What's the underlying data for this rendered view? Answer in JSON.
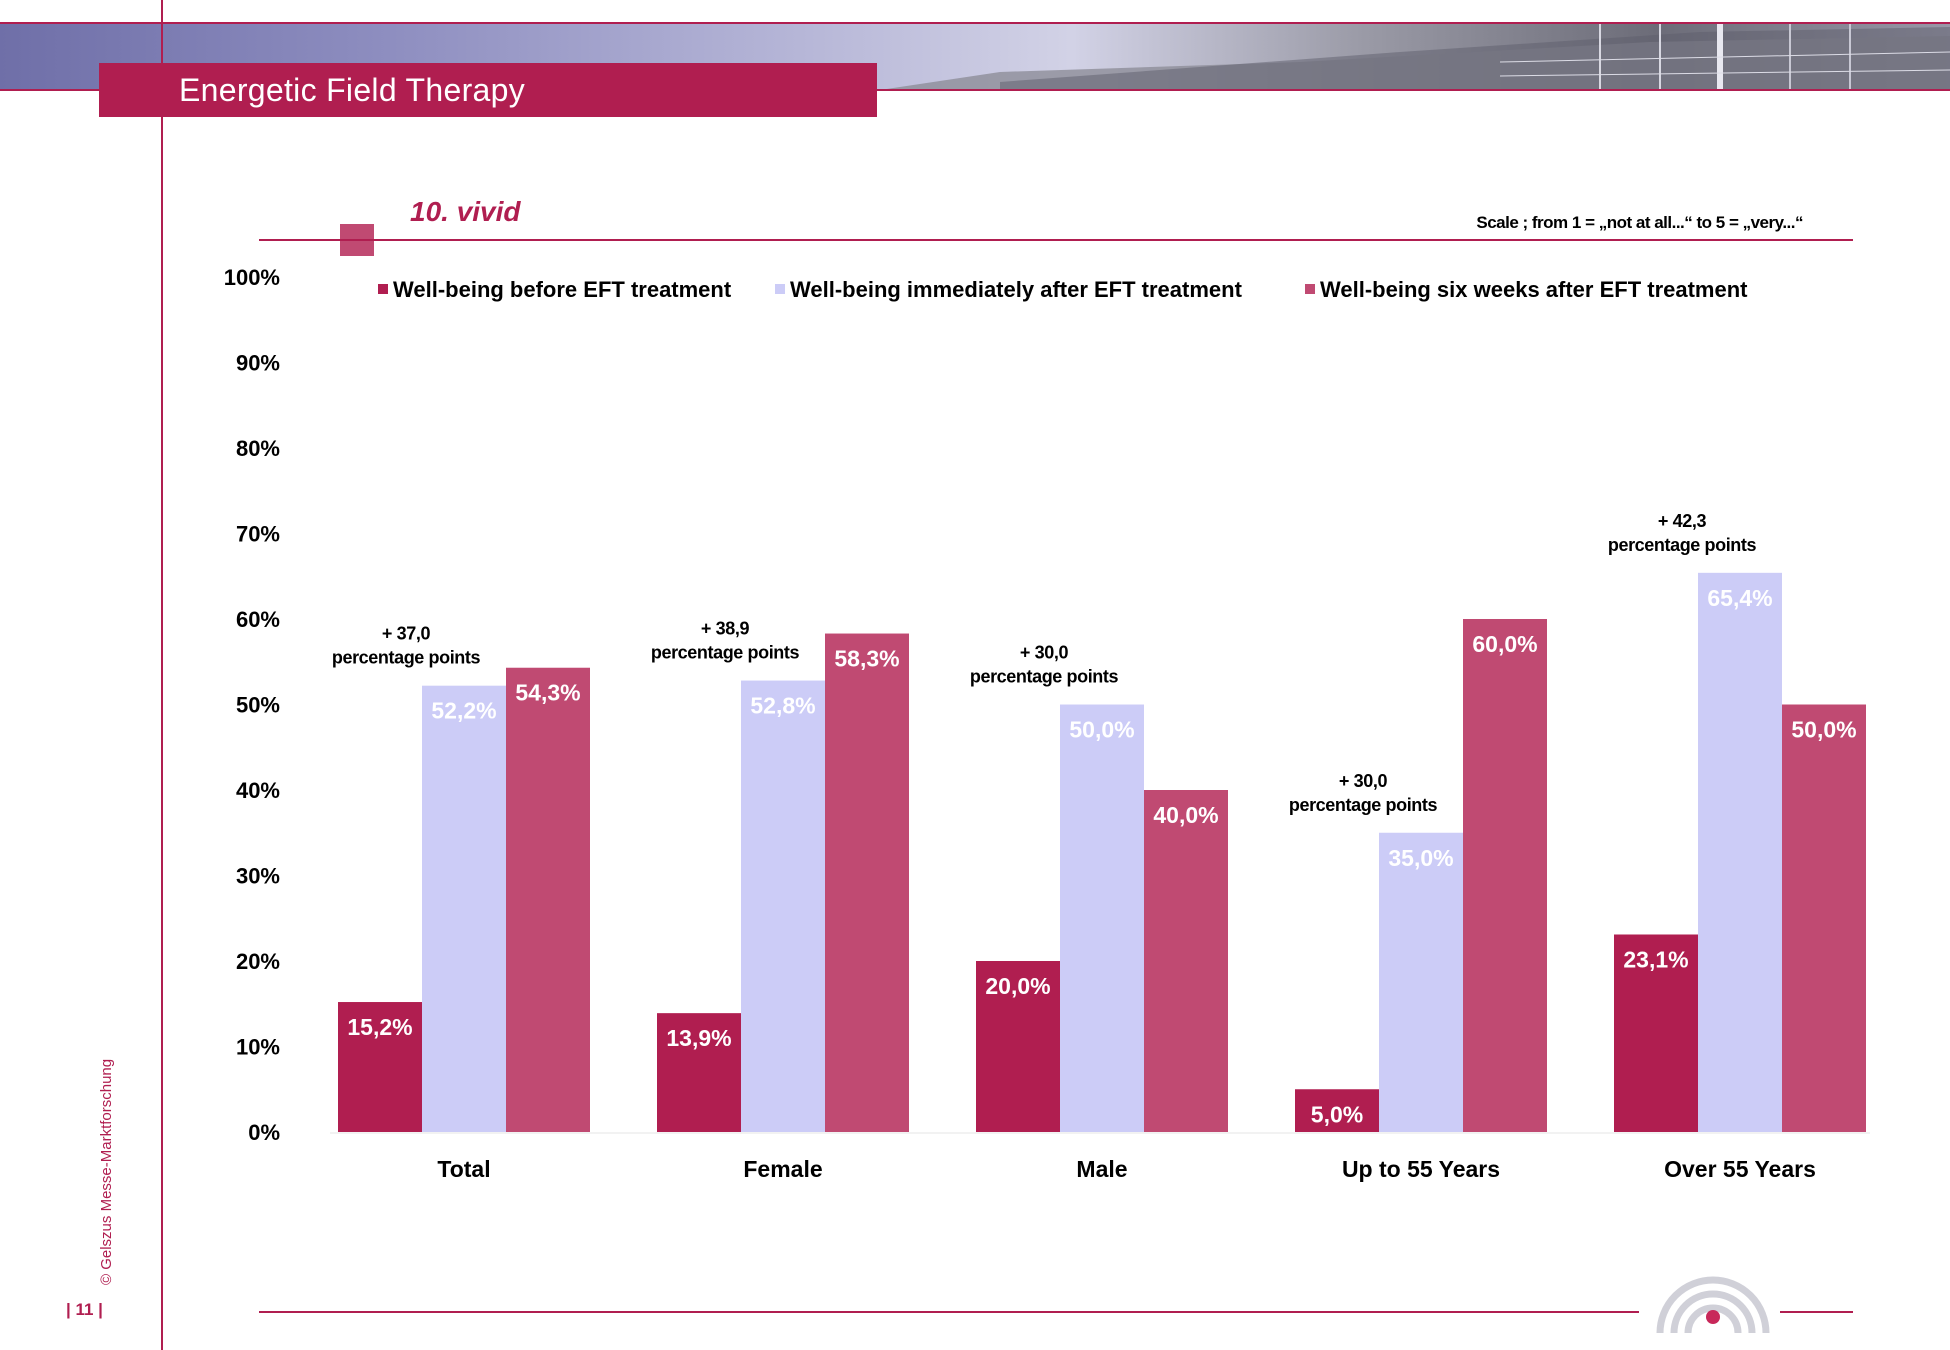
{
  "header": {
    "title": "Energetic Field Therapy"
  },
  "section": {
    "title": "10. vivid",
    "scale_note": "Scale ; from 1 = „not at all...“  to 5 = „very...“"
  },
  "footer": {
    "page_number": "| 11 |",
    "copyright": "© Gelszus Messe-Marktforschung"
  },
  "colors": {
    "brand": "#b01e50",
    "series_before": "#b01e50",
    "series_immediately": "#ccccf7",
    "series_six_weeks": "#c04a72"
  },
  "chart_data": {
    "type": "bar",
    "categories": [
      "Total",
      "Female",
      "Male",
      "Up to 55 Years",
      "Over 55 Years"
    ],
    "series": [
      {
        "name": "Well-being before EFT treatment",
        "values": [
          15.2,
          13.9,
          20.0,
          5.0,
          23.1
        ],
        "labels": [
          "15,2%",
          "13,9%",
          "20,0%",
          "5,0%",
          "23,1%"
        ]
      },
      {
        "name": "Well-being immediately after EFT treatment",
        "values": [
          52.2,
          52.8,
          50.0,
          35.0,
          65.4
        ],
        "labels": [
          "52,2%",
          "52,8%",
          "50,0%",
          "35,0%",
          "65,4%"
        ]
      },
      {
        "name": "Well-being six weeks after EFT treatment",
        "values": [
          54.3,
          58.3,
          40.0,
          60.0,
          50.0
        ],
        "labels": [
          "54,3%",
          "58,3%",
          "40,0%",
          "60,0%",
          "50,0%"
        ]
      }
    ],
    "annotations": [
      {
        "category": "Total",
        "lines": [
          "+ 37,0",
          "percentage points"
        ]
      },
      {
        "category": "Female",
        "lines": [
          "+ 38,9",
          "percentage points"
        ]
      },
      {
        "category": "Male",
        "lines": [
          "+ 30,0",
          "percentage points"
        ]
      },
      {
        "category": "Up to 55 Years",
        "lines": [
          "+ 30,0",
          "percentage points"
        ]
      },
      {
        "category": "Over 55 Years",
        "lines": [
          "+ 42,3",
          "percentage points"
        ]
      }
    ],
    "ylim": [
      0,
      100
    ],
    "yticks": [
      "0%",
      "10%",
      "20%",
      "30%",
      "40%",
      "50%",
      "60%",
      "70%",
      "80%",
      "90%",
      "100%"
    ],
    "xlabel": "",
    "ylabel": "",
    "grid": false,
    "legend_position": "top"
  }
}
